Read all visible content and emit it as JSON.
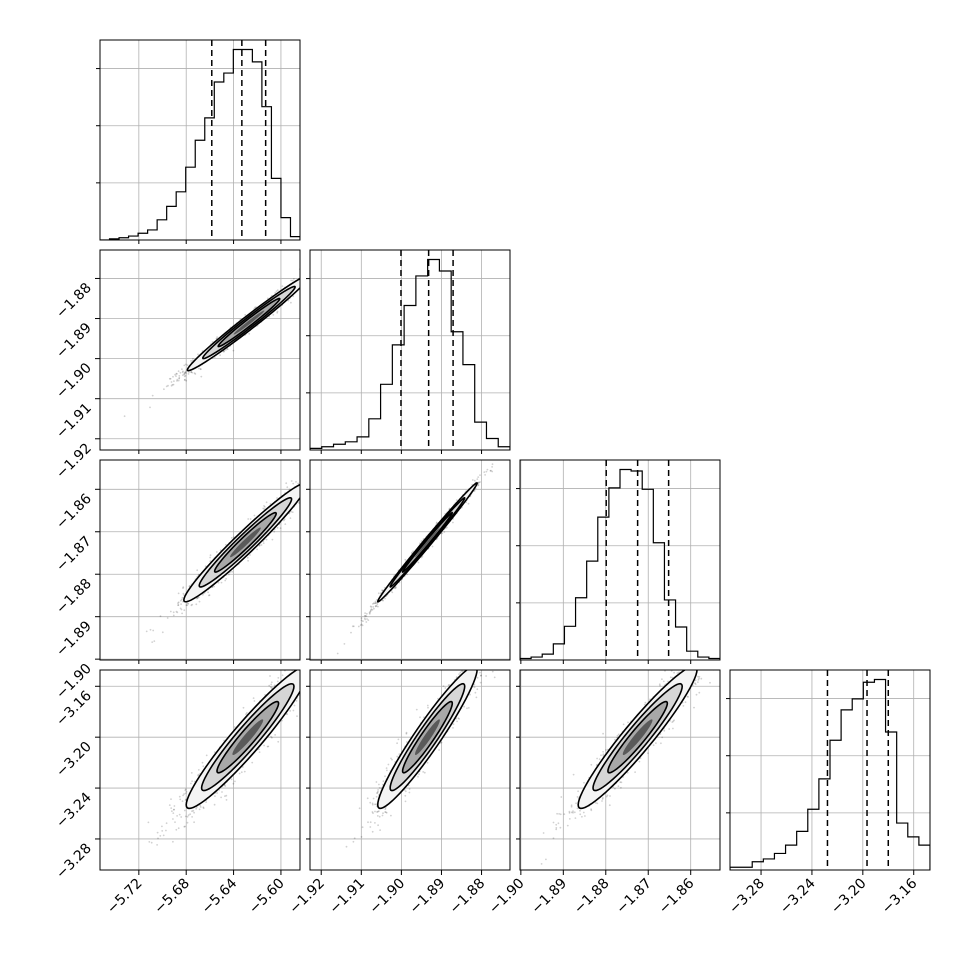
{
  "chart_data": {
    "type": "corner",
    "description_note": "",
    "parameters": [
      {
        "ticks": [
          -5.72,
          -5.68,
          -5.64,
          -5.6
        ],
        "tick_labels": [
          "−5.72",
          "−5.68",
          "−5.64",
          "−5.60"
        ],
        "range": [
          -5.7528,
          -5.5839
        ]
      },
      {
        "ticks": [
          -1.92,
          -1.91,
          -1.9,
          -1.89,
          -1.88
        ],
        "tick_labels": [
          "−1.92",
          "−1.91",
          "−1.90",
          "−1.89",
          "−1.88"
        ],
        "range": [
          -1.9228,
          -1.8729
        ]
      },
      {
        "ticks": [
          -1.9,
          -1.89,
          -1.88,
          -1.87,
          -1.86
        ],
        "tick_labels": [
          "−1.90",
          "−1.89",
          "−1.88",
          "−1.87",
          "−1.86"
        ],
        "range": [
          -1.9002,
          -1.8531
        ]
      },
      {
        "ticks": [
          -3.28,
          -3.24,
          -3.2,
          -3.16
        ],
        "tick_labels": [
          "−3.28",
          "−3.24",
          "−3.20",
          "−3.16"
        ],
        "range": [
          -3.3044,
          -3.1472
        ]
      }
    ],
    "histograms": [
      {
        "quantiles": [
          -5.6584,
          -5.633,
          -5.6129
        ],
        "counts": [
          0,
          2,
          4,
          7,
          12,
          18,
          36,
          60,
          86,
          130,
          178,
          218,
          282,
          298,
          340,
          340,
          318,
          238,
          110,
          40,
          6
        ]
      },
      {
        "quantiles": [
          -1.9001,
          -1.8932,
          -1.8871
        ],
        "counts": [
          2,
          4,
          7,
          10,
          16,
          38,
          80,
          128,
          176,
          212,
          232,
          218,
          144,
          104,
          34,
          14,
          4
        ]
      },
      {
        "quantiles": [
          -1.8799,
          -1.8725,
          -1.8652
        ],
        "counts": [
          2,
          4,
          8,
          22,
          46,
          85,
          135,
          195,
          235,
          260,
          258,
          233,
          160,
          82,
          45,
          12,
          4,
          2
        ]
      },
      {
        "quantiles": [
          -3.2278,
          -3.1967,
          -3.18
        ],
        "counts": [
          1,
          1,
          3,
          4,
          6,
          9,
          14,
          22,
          33,
          47,
          58,
          62,
          68,
          69,
          50,
          17,
          12,
          9
        ]
      }
    ],
    "pairs": [
      {
        "row": 1,
        "col": 0,
        "center": [
          -5.627,
          -1.891
        ],
        "sigma": [
          0.026,
          0.006
        ],
        "rho": 0.985
      },
      {
        "row": 2,
        "col": 0,
        "center": [
          -5.63,
          -1.8725
        ],
        "sigma": [
          0.026,
          0.007
        ],
        "rho": 0.97
      },
      {
        "row": 2,
        "col": 1,
        "center": [
          -1.8935,
          -1.8725
        ],
        "sigma": [
          0.0062,
          0.007
        ],
        "rho": 0.995
      },
      {
        "row": 3,
        "col": 0,
        "center": [
          -5.628,
          -3.2
        ],
        "sigma": [
          0.026,
          0.028
        ],
        "rho": 0.95
      },
      {
        "row": 3,
        "col": 1,
        "center": [
          -1.8935,
          -3.2
        ],
        "sigma": [
          0.0062,
          0.028
        ],
        "rho": 0.95
      },
      {
        "row": 3,
        "col": 2,
        "center": [
          -1.8725,
          -3.2
        ],
        "sigma": [
          0.007,
          0.028
        ],
        "rho": 0.95
      }
    ],
    "grid": true,
    "xlabel": "",
    "ylabel": "",
    "title": ""
  }
}
